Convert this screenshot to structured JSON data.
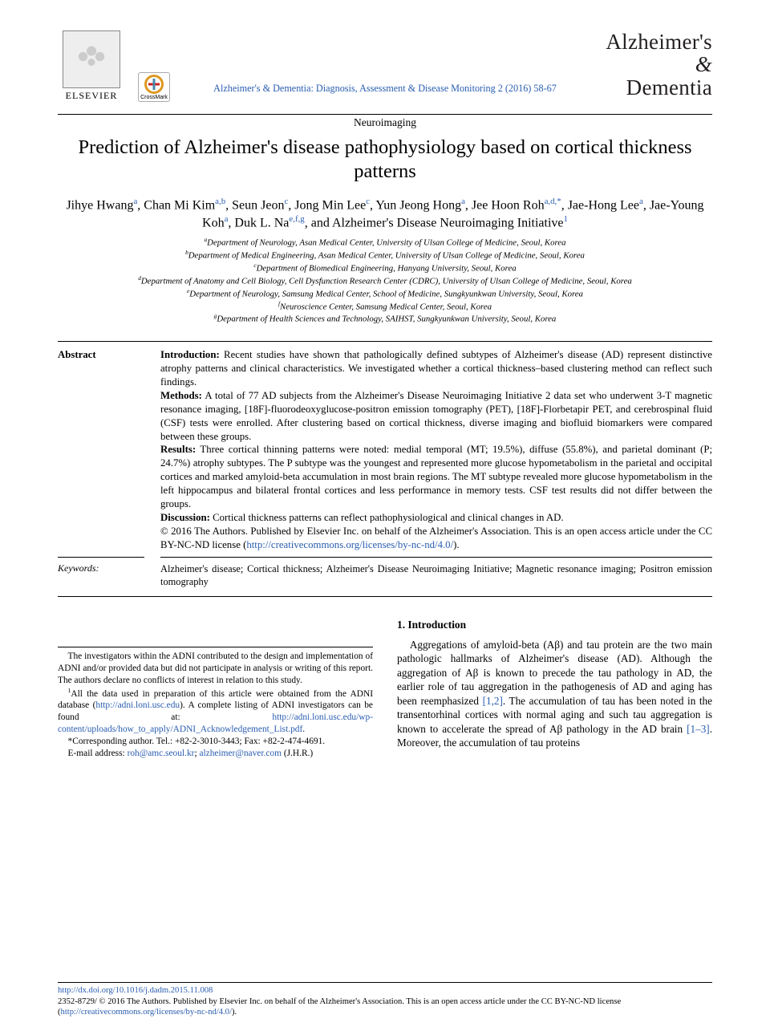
{
  "header": {
    "publisher": "ELSEVIER",
    "crossmark": "CrossMark",
    "journal_brand_line1": "Alzheimer's",
    "journal_brand_amp": "&",
    "journal_brand_line2": "Dementia",
    "citation": "Alzheimer's & Dementia: Diagnosis, Assessment & Disease Monitoring 2 (2016) 58-67"
  },
  "article": {
    "section": "Neuroimaging",
    "title": "Prediction of Alzheimer's disease pathophysiology based on cortical thickness patterns"
  },
  "authors_html": "Jihye Hwang<sup class=\"aff-link\">a</sup>, Chan Mi Kim<sup class=\"aff-link\">a,b</sup>, Seun Jeon<sup class=\"aff-link\">c</sup>, Jong Min Lee<sup class=\"aff-link\">c</sup>, Yun Jeong Hong<sup class=\"aff-link\">a</sup>, Jee Hoon Roh<sup class=\"aff-link\">a,d,*</sup>, Jae-Hong Lee<sup class=\"aff-link\">a</sup>, Jae-Young Koh<sup class=\"aff-link\">a</sup>, Duk L. Na<sup class=\"aff-link\">e,f,g</sup>, and Alzheimer's Disease Neuroimaging Initiative<sup class=\"aff-link\">1</sup>",
  "affiliations": [
    {
      "sup": "a",
      "text": "Department of Neurology, Asan Medical Center, University of Ulsan College of Medicine, Seoul, Korea"
    },
    {
      "sup": "b",
      "text": "Department of Medical Engineering, Asan Medical Center, University of Ulsan College of Medicine, Seoul, Korea"
    },
    {
      "sup": "c",
      "text": "Department of Biomedical Engineering, Hanyang University, Seoul, Korea"
    },
    {
      "sup": "d",
      "text": "Department of Anatomy and Cell Biology, Cell Dysfunction Research Center (CDRC), University of Ulsan College of Medicine, Seoul, Korea"
    },
    {
      "sup": "e",
      "text": "Department of Neurology, Samsung Medical Center, School of Medicine, Sungkyunkwan University, Seoul, Korea"
    },
    {
      "sup": "f",
      "text": "Neuroscience Center, Samsung Medical Center, Seoul, Korea"
    },
    {
      "sup": "g",
      "text": "Department of Health Sciences and Technology, SAIHST, Sungkyunkwan University, Seoul, Korea"
    }
  ],
  "abstract": {
    "label": "Abstract",
    "intro_head": "Introduction:",
    "intro": " Recent studies have shown that pathologically defined subtypes of Alzheimer's disease (AD) represent distinctive atrophy patterns and clinical characteristics. We investigated whether a cortical thickness–based clustering method can reflect such findings.",
    "methods_head": "Methods:",
    "methods": " A total of 77 AD subjects from the Alzheimer's Disease Neuroimaging Initiative 2 data set who underwent 3-T magnetic resonance imaging, [18F]-fluorodeoxyglucose-positron emission tomography (PET), [18F]-Florbetapir PET, and cerebrospinal fluid (CSF) tests were enrolled. After clustering based on cortical thickness, diverse imaging and biofluid biomarkers were compared between these groups.",
    "results_head": "Results:",
    "results": " Three cortical thinning patterns were noted: medial temporal (MT; 19.5%), diffuse (55.8%), and parietal dominant (P; 24.7%) atrophy subtypes. The P subtype was the youngest and represented more glucose hypometabolism in the parietal and occipital cortices and marked amyloid-beta accumulation in most brain regions. The MT subtype revealed more glucose hypometabolism in the left hippocampus and bilateral frontal cortices and less performance in memory tests. CSF test results did not differ between the groups.",
    "discussion_head": "Discussion:",
    "discussion": " Cortical thickness patterns can reflect pathophysiological and clinical changes in AD.",
    "copyright_pre": "© 2016 The Authors. Published by Elsevier Inc. on behalf of the Alzheimer's Association. This is an open access article under the CC BY-NC-ND license (",
    "license_url": "http://creativecommons.org/licenses/by-nc-nd/4.0/",
    "copyright_post": ").",
    "keywords_label": "Keywords:",
    "keywords": "Alzheimer's disease; Cortical thickness; Alzheimer's Disease Neuroimaging Initiative; Magnetic resonance imaging; Positron emission tomography"
  },
  "introduction": {
    "heading": "1. Introduction",
    "body_pre": "Aggregations of amyloid-beta (Aβ) and tau protein are the two main pathologic hallmarks of Alzheimer's disease (AD). Although the aggregation of Aβ is known to precede the tau pathology in AD, the earlier role of tau aggregation in the pathogenesis of AD and aging has been reemphasized ",
    "ref1": "[1,2]",
    "body_mid": ". The accumulation of tau has been noted in the transentorhinal cortices with normal aging and such tau aggregation is known to accelerate the spread of Aβ pathology in the AD brain ",
    "ref2": "[1–3]",
    "body_post": ". Moreover, the accumulation of tau proteins"
  },
  "footnotes": {
    "conflict": "The investigators within the ADNI contributed to the design and implementation of ADNI and/or provided data but did not participate in analysis or writing of this report. The authors declare no conflicts of interest in relation to this study.",
    "data_sup": "1",
    "data_pre": "All the data used in preparation of this article were obtained from the ADNI database (",
    "adni_url": "http://adni.loni.usc.edu",
    "data_mid": "). A complete listing of ADNI investigators can be found at: ",
    "adni_list_url": "http://adni.loni.usc.edu/wp-content/uploads/how_to_apply/ADNI_Acknowledgement_List.pdf",
    "data_post": ".",
    "corr_pre": "*Corresponding author. Tel.: +82-2-3010-3443; Fax: +82-2-474-4691.",
    "email_label": "E-mail address: ",
    "email1": "roh@amc.seoul.kr",
    "email_sep": "; ",
    "email2": "alzheimer@naver.com",
    "email_tail": " (J.H.R.)"
  },
  "footer": {
    "doi": "http://dx.doi.org/10.1016/j.dadm.2015.11.008",
    "issn_line_pre": "2352-8729/ © 2016 The Authors. Published by Elsevier Inc. on behalf of the Alzheimer's Association. This is an open access article under the CC BY-NC-ND license (",
    "license_url": "http://creativecommons.org/licenses/by-nc-nd/4.0/",
    "issn_line_post": ")."
  },
  "colors": {
    "link": "#2a5db0",
    "text": "#000000",
    "bg": "#ffffff"
  }
}
